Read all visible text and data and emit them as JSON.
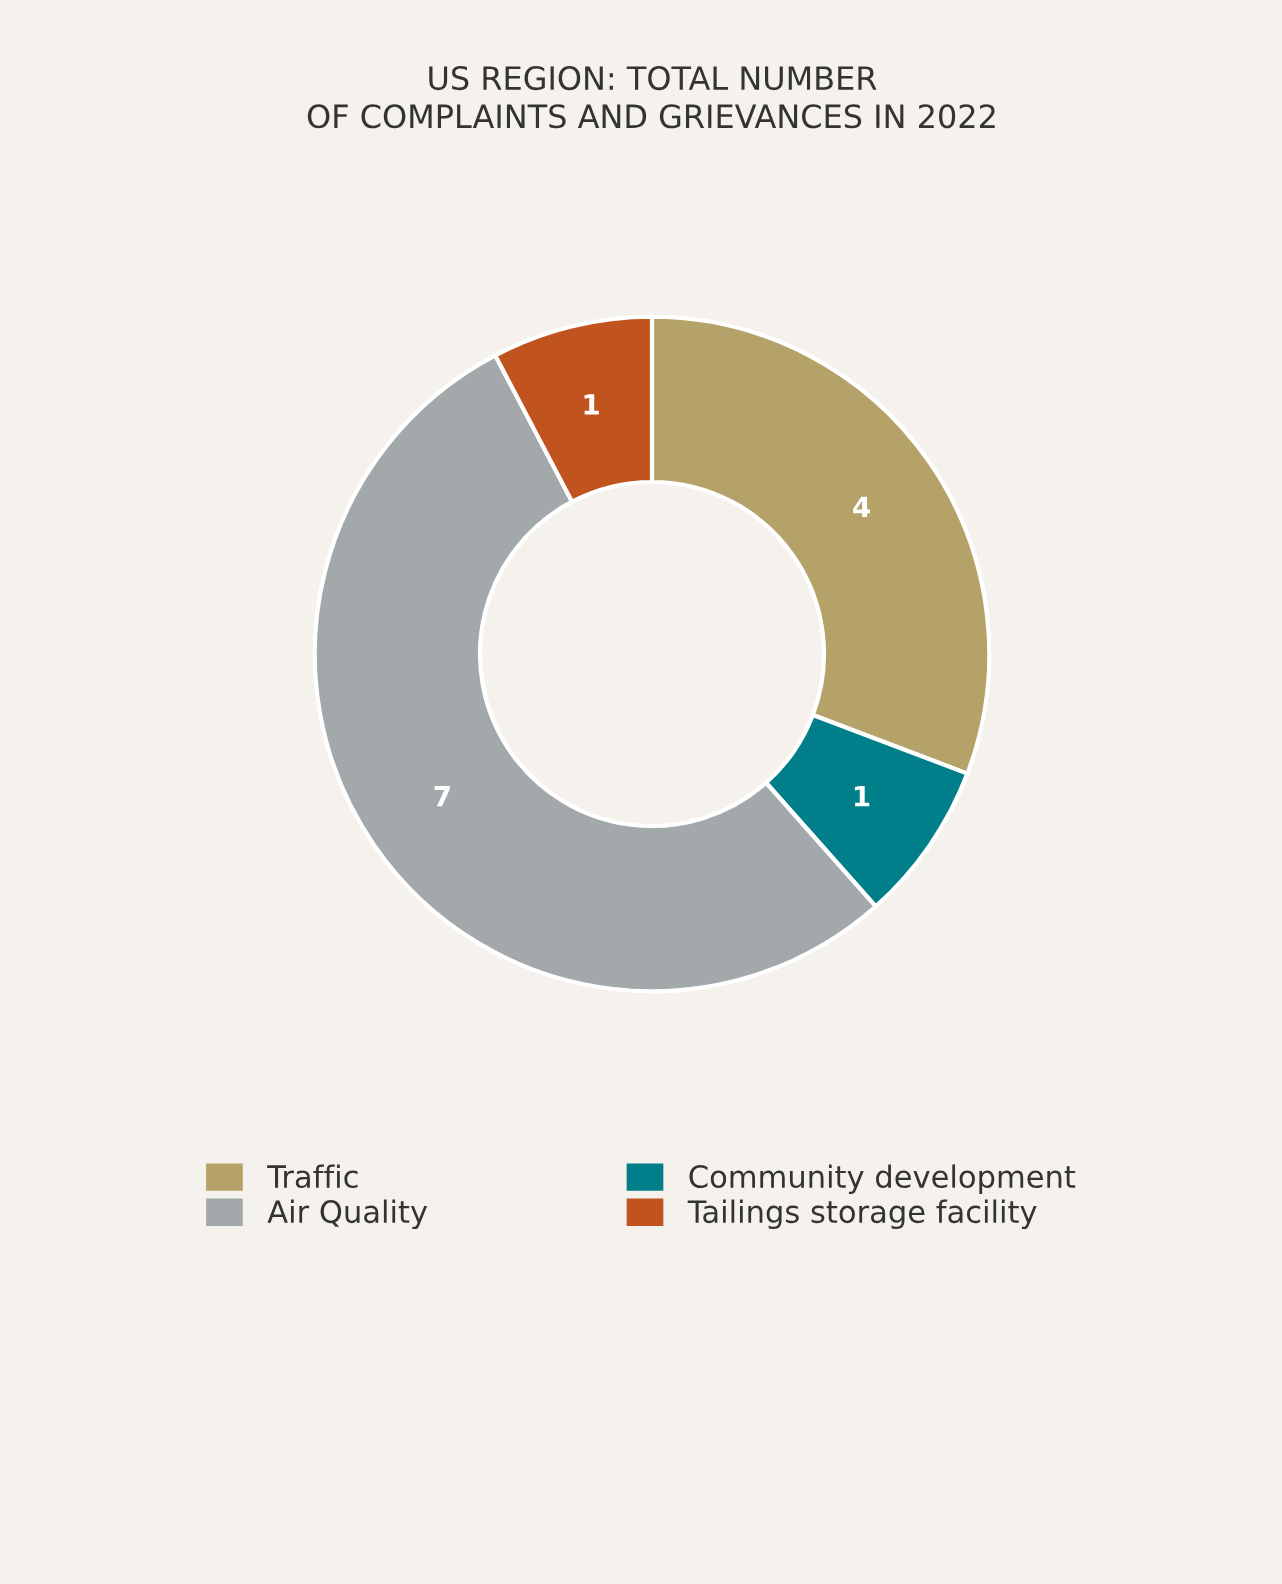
{
  "chart_data": {
    "type": "donut",
    "title": "US REGION: TOTAL NUMBER\nOF COMPLAINTS AND GRIEVANCES IN 2022",
    "categories": [
      "Traffic",
      "Community development",
      "Air Quality",
      "Tailings storage facility"
    ],
    "values": [
      4,
      1,
      7,
      1
    ],
    "colors": [
      "#b5a268",
      "#007f8a",
      "#a3a9ab",
      "#c0531e"
    ],
    "data_labels": true,
    "legend": "bottom"
  }
}
